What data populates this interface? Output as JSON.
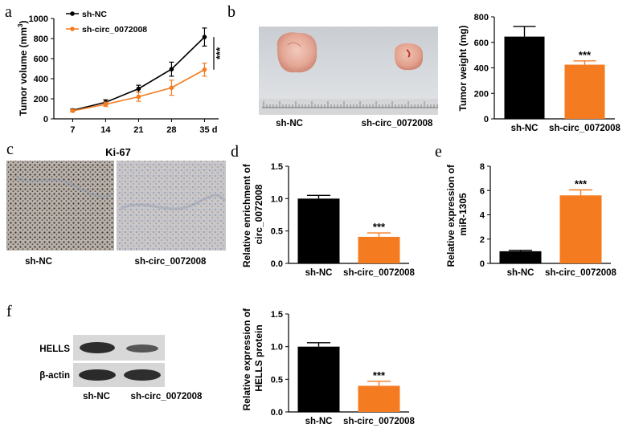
{
  "panel_labels": {
    "a": "a",
    "b": "b",
    "c": "c",
    "d": "d",
    "e": "e",
    "f": "f"
  },
  "colors": {
    "nc": "#000000",
    "circ": "#f47b20"
  },
  "panel_a": {
    "chart_data": {
      "type": "line",
      "x": [
        7,
        14,
        21,
        28,
        35
      ],
      "x_tick_labels": [
        "7",
        "14",
        "21",
        "28",
        "35 d"
      ],
      "ylabel_main": "Tumor volume (mm",
      "ylabel_sup": "3",
      "ylabel_tail": ")",
      "ylim": [
        0,
        1000
      ],
      "yticks": [
        0,
        200,
        400,
        600,
        800,
        1000
      ],
      "series": [
        {
          "name": "sh-NC",
          "color": "#000000",
          "values": [
            85,
            165,
            300,
            495,
            815
          ],
          "errors": [
            12,
            25,
            35,
            70,
            90
          ]
        },
        {
          "name": "sh-circ_0072008",
          "color": "#f47b20",
          "values": [
            80,
            145,
            220,
            310,
            490
          ],
          "errors": [
            10,
            22,
            45,
            75,
            65
          ]
        }
      ],
      "significance": "***"
    }
  },
  "panel_b": {
    "image_labels": [
      "sh-NC",
      "sh-circ_0072008"
    ],
    "chart_data": {
      "type": "bar",
      "categories": [
        "sh-NC",
        "sh-circ_0072008"
      ],
      "values": [
        645,
        425
      ],
      "errors": [
        80,
        30
      ],
      "colors": [
        "#000000",
        "#f47b20"
      ],
      "ylabel": "Tumor weight (mg)",
      "ylim": [
        0,
        800
      ],
      "yticks": [
        0,
        200,
        400,
        600,
        800
      ],
      "significance": "***"
    }
  },
  "panel_c": {
    "title": "Ki-67",
    "image_labels": [
      "sh-NC",
      "sh-circ_0072008"
    ]
  },
  "panel_d": {
    "chart_data": {
      "type": "bar",
      "categories": [
        "sh-NC",
        "sh-circ_0072008"
      ],
      "values": [
        1.0,
        0.41
      ],
      "errors": [
        0.05,
        0.06
      ],
      "colors": [
        "#000000",
        "#f47b20"
      ],
      "ylabel_lines": [
        "Relative enrichment of",
        "circ_0072008"
      ],
      "ylim": [
        0,
        1.5
      ],
      "yticks": [
        "0.0",
        "0.5",
        "1.0",
        "1.5"
      ],
      "significance": "***"
    }
  },
  "panel_e": {
    "chart_data": {
      "type": "bar",
      "categories": [
        "sh-NC",
        "sh-circ_0072008"
      ],
      "values": [
        1.0,
        5.6
      ],
      "errors": [
        0.08,
        0.45
      ],
      "colors": [
        "#000000",
        "#f47b20"
      ],
      "ylabel_lines": [
        "Relative expression of",
        "miR-1305"
      ],
      "ylim": [
        0,
        8
      ],
      "yticks": [
        "0",
        "2",
        "4",
        "6",
        "8"
      ],
      "significance": "***"
    }
  },
  "panel_f": {
    "blot_labels": [
      "HELLS",
      "β-actin"
    ],
    "lane_labels": [
      "sh-NC",
      "sh-circ_0072008"
    ],
    "chart_data": {
      "type": "bar",
      "categories": [
        "sh-NC",
        "sh-circ_0072008"
      ],
      "values": [
        1.0,
        0.4
      ],
      "errors": [
        0.06,
        0.07
      ],
      "colors": [
        "#000000",
        "#f47b20"
      ],
      "ylabel_lines": [
        "Relative expression of",
        "HELLS protein"
      ],
      "ylim": [
        0,
        1.5
      ],
      "yticks": [
        "0.0",
        "0.5",
        "1.0",
        "1.5"
      ],
      "significance": "***"
    }
  }
}
